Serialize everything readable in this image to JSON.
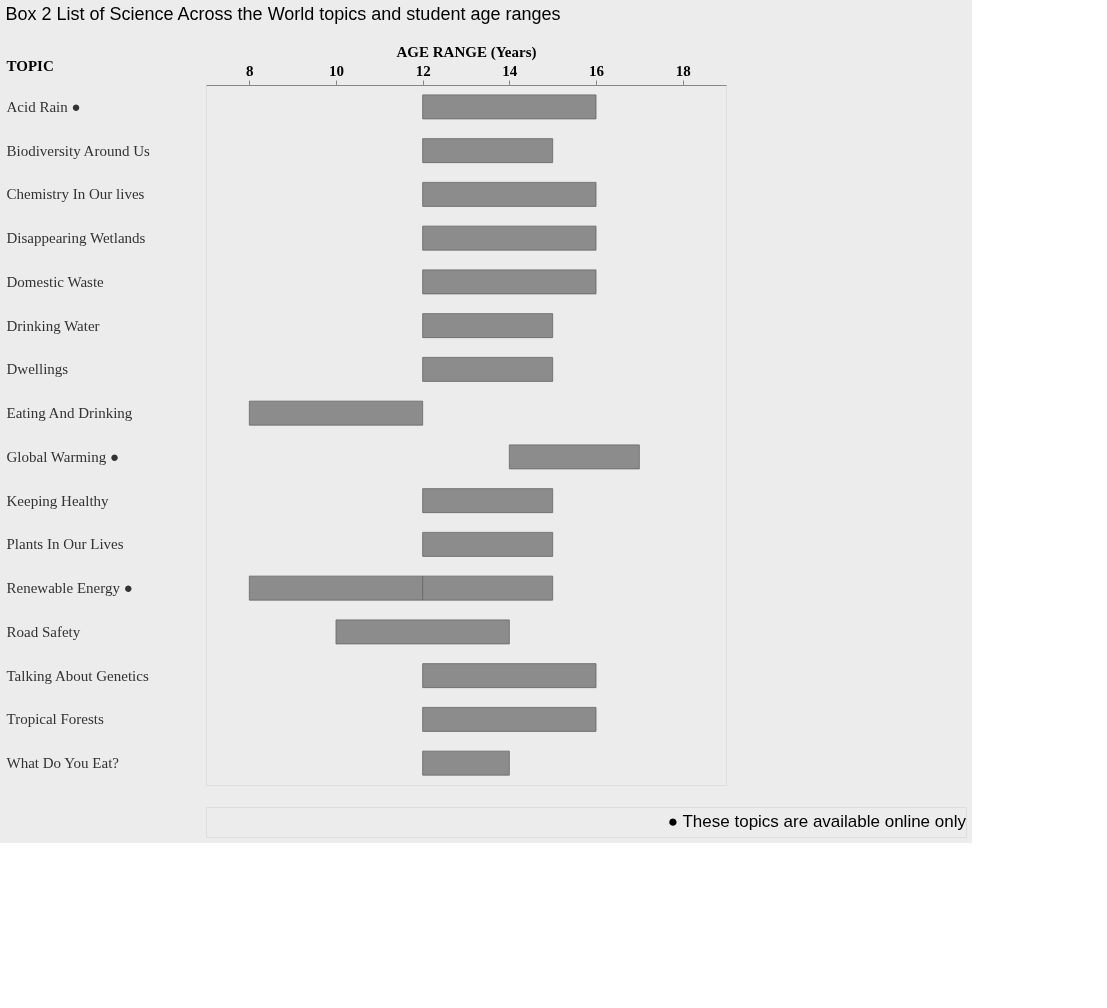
{
  "chart_data": {
    "type": "bar",
    "orientation": "horizontal",
    "title": "Box 2 List of Science Across the World topics and student age ranges",
    "xlabel": "AGE RANGE (Years)",
    "ylabel": "TOPIC",
    "categories": [
      "Acid Rain ●",
      "Biodiversity Around Us",
      "Chemistry In Our lives",
      "Disappearing Wetlands",
      "Domestic Waste",
      "Drinking Water",
      "Dwellings",
      "Eating And Drinking",
      "Global Warming ●",
      "Keeping Healthy",
      "Plants In Our Lives",
      "Renewable Energy ●",
      "Road Safety",
      "Talking About Genetics",
      "Tropical Forests",
      "What Do You Eat?"
    ],
    "series": [
      {
        "color": "#8c8c8c",
        "base": [
          12,
          12,
          12,
          12,
          12,
          12,
          12,
          8,
          14,
          12,
          12,
          8,
          10,
          12,
          12,
          12
        ],
        "values": [
          4,
          3,
          4,
          4,
          4,
          3,
          3,
          4,
          3,
          3,
          3,
          4,
          4,
          4,
          4,
          2
        ]
      },
      {
        "color": "#8c8c8c",
        "base": [
          null,
          null,
          null,
          null,
          null,
          null,
          null,
          null,
          null,
          null,
          null,
          12,
          null,
          null,
          null,
          null
        ],
        "values": [
          null,
          null,
          null,
          null,
          null,
          null,
          null,
          null,
          null,
          null,
          null,
          3,
          null,
          null,
          null,
          null
        ]
      }
    ],
    "xlim": [
      7,
      19
    ],
    "xticks": [
      8,
      10,
      12,
      14,
      16,
      18
    ],
    "grid": false,
    "legend": false,
    "annotations": [
      "● These topics are available online only"
    ]
  }
}
